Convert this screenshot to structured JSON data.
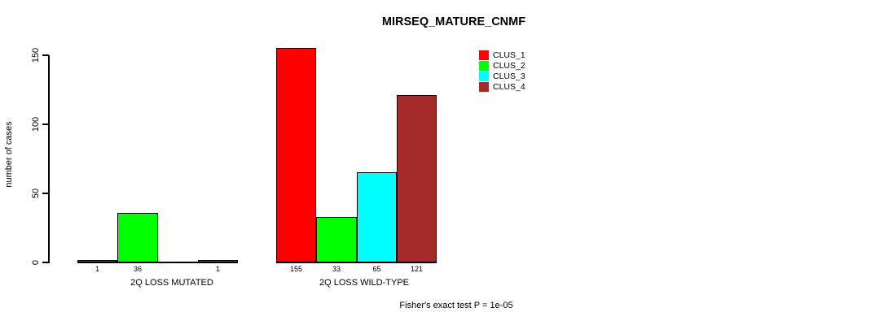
{
  "title": "MIRSEQ_MATURE_CNMF",
  "chart_data": {
    "type": "bar",
    "title": "MIRSEQ_MATURE_CNMF",
    "xlabel": "",
    "ylabel": "number of cases",
    "ylim": [
      0,
      155
    ],
    "yticks": [
      "0",
      "50",
      "100",
      "150"
    ],
    "ytick_values": [
      0,
      50,
      100,
      150
    ],
    "grid": false,
    "legend_position": "top-right",
    "categories": [
      "2Q LOSS MUTATED",
      "2Q LOSS WILD-TYPE"
    ],
    "series": [
      {
        "name": "CLUS_1",
        "color": "#FF0000",
        "values": [
          1,
          155
        ]
      },
      {
        "name": "CLUS_2",
        "color": "#00FF00",
        "values": [
          36,
          33
        ]
      },
      {
        "name": "CLUS_3",
        "color": "#00FFFF",
        "values": [
          0,
          65
        ]
      },
      {
        "name": "CLUS_4",
        "color": "#A52A2A",
        "values": [
          1,
          121
        ]
      }
    ],
    "bar_value_labels": [
      [
        "1",
        "36",
        "",
        "1"
      ],
      [
        "155",
        "33",
        "65",
        "121"
      ]
    ],
    "annotation": "Fisher's exact test P = 1e-05"
  }
}
